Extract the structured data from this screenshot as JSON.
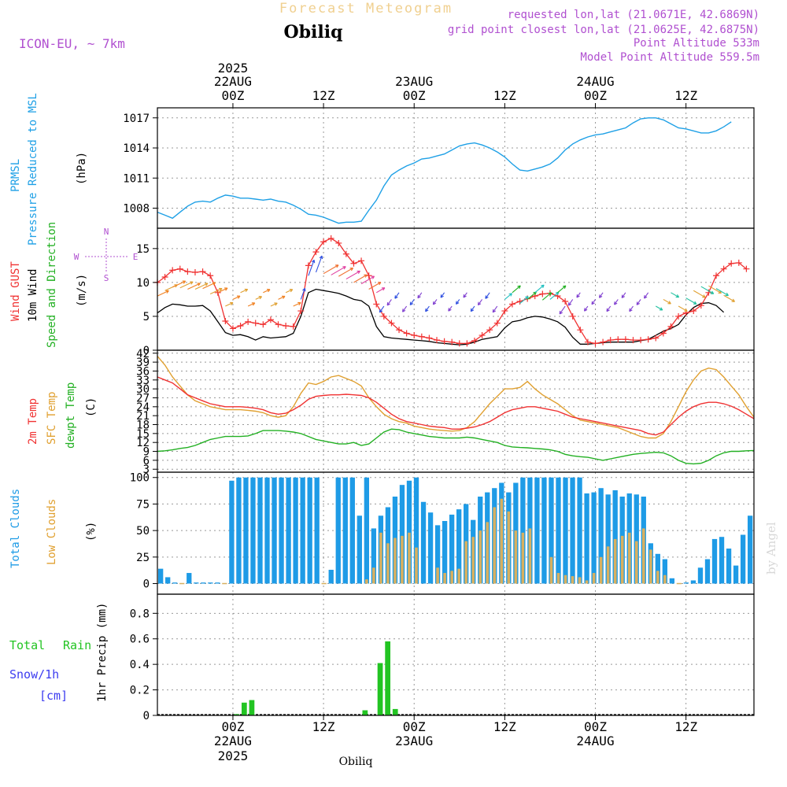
{
  "header": {
    "faint_title": "Forecast Meteogram",
    "location": "Obiliq",
    "model": "ICON-EU, ~ 7km",
    "info_lines": [
      "requested lon,lat (21.0671E, 42.6869N)",
      "grid point closest lon,lat (21.0625E, 42.6875N)",
      "Point Altitude 533m",
      "Model Point Altitude 559.5m"
    ],
    "watermark": "by Angel",
    "footer_location": "Obiliq"
  },
  "time_axis": {
    "year": "2025",
    "ticks": [
      {
        "hour": 0,
        "label": "00Z",
        "date": "22AUG"
      },
      {
        "hour": 12,
        "label": "12Z",
        "date": ""
      },
      {
        "hour": 24,
        "label": "00Z",
        "date": "23AUG"
      },
      {
        "hour": 36,
        "label": "12Z",
        "date": ""
      },
      {
        "hour": 48,
        "label": "00Z",
        "date": "24AUG"
      },
      {
        "hour": 60,
        "label": "12Z",
        "date": ""
      }
    ]
  },
  "colors": {
    "pressure": "#1ea0e6",
    "gust": "#f03232",
    "wind": "#000000",
    "direction": "#22b022",
    "temp2m": "#f03232",
    "sfc": "#e0a030",
    "dew": "#22b022",
    "total_cloud": "#1e9be6",
    "low_cloud": "#d8b060",
    "rain": "#22c422",
    "snow": "#3c3cf0",
    "info": "#b050d0",
    "faint": "#f0d090"
  },
  "panels": {
    "pressure": {
      "labels": [
        "PRMSL",
        "Pressure Reduced to MSL"
      ],
      "unit": "(hPa)",
      "yticks": [
        1008,
        1011,
        1014,
        1017
      ]
    },
    "wind": {
      "labels": [
        "Wind GUST",
        "10m Wind",
        "Speed and Direction"
      ],
      "unit": "(m/s)",
      "yticks": [
        0,
        5,
        10,
        15
      ],
      "compass": {
        "n": "N",
        "s": "S",
        "w": "W",
        "e": "E"
      }
    },
    "temp": {
      "labels": [
        "2m Temp",
        "SFC Temp",
        "dewpt Temp"
      ],
      "unit": "(C)",
      "yticks": [
        3,
        6,
        9,
        12,
        15,
        18,
        21,
        24,
        27,
        30,
        33,
        36,
        39,
        42
      ]
    },
    "cloud": {
      "labels": [
        "Total Clouds",
        "Low Clouds"
      ],
      "unit": "(%)",
      "yticks": [
        0,
        25,
        50,
        75,
        100
      ]
    },
    "precip": {
      "labels": [
        "Total",
        "Rain",
        "Snow/1h",
        "[cm]"
      ],
      "axis_label": "1hr Precip (mm)",
      "yticks": [
        "0",
        "0.2",
        "0.4",
        "0.6",
        "0.8"
      ]
    }
  },
  "chart_data": [
    {
      "type": "line",
      "name": "pressure",
      "x_start": -10,
      "x_step": 1,
      "ylim": [
        1006,
        1018
      ],
      "series": [
        {
          "name": "PRMSL",
          "values": [
            1007.6,
            1007.3,
            1007.0,
            1007.6,
            1008.2,
            1008.6,
            1008.7,
            1008.6,
            1009.0,
            1009.3,
            1009.2,
            1009.0,
            1009.0,
            1008.9,
            1008.8,
            1008.9,
            1008.7,
            1008.6,
            1008.3,
            1007.9,
            1007.4,
            1007.3,
            1007.1,
            1006.8,
            1006.5,
            1006.6,
            1006.6,
            1006.7,
            1007.8,
            1008.8,
            1010.2,
            1011.3,
            1011.8,
            1012.2,
            1012.5,
            1012.9,
            1013.0,
            1013.2,
            1013.4,
            1013.8,
            1014.2,
            1014.4,
            1014.5,
            1014.3,
            1014.0,
            1013.6,
            1013.1,
            1012.4,
            1011.8,
            1011.7,
            1011.9,
            1012.1,
            1012.4,
            1013.0,
            1013.8,
            1014.4,
            1014.8,
            1015.1,
            1015.3,
            1015.4,
            1015.6,
            1015.8,
            1016.0,
            1016.5,
            1016.9,
            1017.0,
            1017.0,
            1016.8,
            1016.4,
            1016.0,
            1015.9,
            1015.7,
            1015.5,
            1015.5,
            1015.7,
            1016.1,
            1016.6
          ]
        }
      ]
    },
    {
      "type": "line",
      "name": "wind",
      "x_start": -10,
      "x_step": 1,
      "ylim": [
        0,
        18
      ],
      "series": [
        {
          "name": "Wind GUST",
          "values": [
            10.0,
            10.8,
            11.8,
            12.0,
            11.6,
            11.5,
            11.6,
            11.0,
            8.5,
            4.3,
            3.2,
            3.6,
            4.2,
            4.0,
            3.8,
            4.5,
            3.8,
            3.6,
            3.5,
            5.8,
            12.5,
            14.5,
            16.0,
            16.5,
            15.8,
            14.2,
            12.8,
            13.2,
            11.0,
            6.8,
            5.0,
            4.0,
            3.0,
            2.5,
            2.2,
            2.0,
            1.8,
            1.5,
            1.3,
            1.2,
            1.0,
            1.0,
            1.4,
            2.2,
            3.0,
            4.0,
            5.8,
            6.8,
            7.2,
            7.6,
            8.0,
            8.3,
            8.4,
            8.0,
            7.2,
            5.0,
            3.0,
            1.2,
            1.0,
            1.2,
            1.5,
            1.6,
            1.6,
            1.5,
            1.5,
            1.6,
            1.8,
            2.5,
            3.5,
            5.0,
            5.5,
            5.8,
            6.6,
            8.5,
            11.0,
            12.0,
            12.8,
            12.9,
            12.0
          ]
        },
        {
          "name": "10m Wind",
          "values": [
            5.5,
            6.3,
            6.8,
            6.7,
            6.5,
            6.5,
            6.6,
            5.8,
            4.2,
            2.6,
            2.2,
            2.3,
            2.0,
            1.5,
            2.0,
            1.8,
            1.9,
            2.0,
            2.5,
            5.0,
            8.5,
            9.0,
            8.8,
            8.6,
            8.4,
            8.0,
            7.5,
            7.3,
            6.5,
            3.5,
            2.0,
            1.8,
            1.7,
            1.6,
            1.5,
            1.4,
            1.3,
            1.1,
            1.0,
            0.9,
            0.8,
            0.9,
            1.2,
            1.6,
            1.8,
            2.0,
            3.3,
            4.2,
            4.4,
            4.8,
            5.0,
            4.9,
            4.6,
            4.2,
            3.4,
            1.9,
            0.9,
            0.9,
            1.0,
            1.1,
            1.2,
            1.2,
            1.2,
            1.2,
            1.4,
            1.6,
            2.2,
            2.8,
            3.2,
            3.8,
            5.2,
            6.3,
            6.9,
            7.0,
            6.6,
            5.6
          ]
        }
      ]
    },
    {
      "type": "line",
      "name": "temperature",
      "x_start": -10,
      "x_step": 1,
      "ylim": [
        2,
        43
      ],
      "series": [
        {
          "name": "2m Temp",
          "values": [
            34,
            33,
            32,
            30,
            28,
            27,
            26,
            25,
            24.5,
            24,
            24,
            24,
            23.8,
            23.5,
            23,
            22,
            21.5,
            21.8,
            23,
            24.5,
            26.5,
            27.5,
            27.8,
            28,
            28,
            28.2,
            28,
            27.8,
            27,
            25.5,
            23.5,
            21.5,
            20,
            19,
            18.5,
            18,
            17.5,
            17.2,
            17,
            16.5,
            16.5,
            16.8,
            17.2,
            18,
            19,
            20.5,
            22,
            23,
            23.5,
            24,
            24,
            23.5,
            23,
            22.5,
            21.5,
            20.5,
            20,
            19.5,
            19,
            18.5,
            18,
            17.5,
            17,
            16.5,
            16,
            15,
            14.5,
            15.5,
            18,
            20.5,
            22.5,
            24,
            25,
            25.5,
            25.5,
            25,
            24.2,
            23,
            21.5,
            20
          ]
        },
        {
          "name": "SFC Temp",
          "values": [
            41,
            38,
            34,
            31,
            28,
            26,
            25,
            24,
            23.5,
            23,
            23,
            23,
            22.8,
            22.5,
            22,
            21,
            20.5,
            21,
            24,
            28.5,
            32,
            31.5,
            32.5,
            34,
            34.5,
            33.5,
            32.5,
            31,
            27,
            24,
            21.5,
            20,
            19,
            18.5,
            17.5,
            17,
            16.5,
            16.2,
            16,
            15.8,
            16,
            17,
            19,
            22,
            25,
            27.5,
            30,
            30,
            30.5,
            32.5,
            30,
            28,
            26.5,
            25,
            23,
            21,
            19.5,
            19,
            18.5,
            18,
            17.5,
            17,
            16,
            15,
            14,
            13.5,
            13.5,
            15,
            19,
            24,
            29,
            33,
            36,
            37,
            36.5,
            34,
            31,
            28,
            24,
            20.5
          ]
        },
        {
          "name": "dewpt Temp",
          "values": [
            9,
            9.2,
            9.5,
            10,
            10.3,
            11,
            12,
            13,
            13.5,
            14,
            14,
            14,
            14.2,
            15,
            16,
            16,
            16,
            15.8,
            15.5,
            15,
            14,
            13,
            12.5,
            12,
            11.5,
            11.5,
            12,
            11,
            11.5,
            13.5,
            15.5,
            16.5,
            16.3,
            15.5,
            15,
            14.5,
            14,
            13.8,
            13.5,
            13.5,
            13.5,
            13.8,
            13.5,
            13,
            12.5,
            12,
            11,
            10.5,
            10.3,
            10.2,
            10,
            9.8,
            9.5,
            9,
            8,
            7.5,
            7.2,
            7,
            6.5,
            6,
            6.5,
            7,
            7.5,
            8,
            8.3,
            8.5,
            8.7,
            8.5,
            7.5,
            6,
            5,
            4.8,
            5,
            6,
            7.5,
            8.5,
            9,
            9,
            9.2,
            9.3
          ]
        }
      ]
    },
    {
      "type": "bar",
      "name": "clouds",
      "x_start": -10,
      "x_step": 1,
      "ylim": [
        -10,
        105
      ],
      "series": [
        {
          "name": "Total Clouds",
          "values": [
            14,
            6,
            1,
            0,
            10,
            1,
            1,
            1,
            1,
            0,
            97,
            100,
            100,
            100,
            100,
            100,
            100,
            100,
            100,
            100,
            100,
            100,
            100,
            0,
            13,
            100,
            100,
            100,
            64,
            100,
            52,
            64,
            72,
            82,
            93,
            97,
            100,
            77,
            67,
            55,
            59,
            65,
            70,
            75,
            60,
            82,
            86,
            90,
            95,
            86,
            95,
            100,
            100,
            100,
            100,
            100,
            100,
            100,
            100,
            100,
            85,
            86,
            90,
            84,
            88,
            82,
            85,
            84,
            82,
            38,
            28,
            23,
            5,
            0,
            1,
            3,
            15,
            23,
            42,
            44,
            33,
            17,
            46,
            64
          ]
        },
        {
          "name": "Low Clouds",
          "values": [
            0,
            0,
            0,
            0,
            0,
            0,
            0,
            0,
            0,
            0,
            0,
            0,
            0,
            0,
            0,
            0,
            0,
            0,
            0,
            0,
            0,
            0,
            0,
            0,
            0,
            0,
            0,
            0,
            0,
            4,
            15,
            48,
            38,
            43,
            45,
            48,
            34,
            0,
            0,
            15,
            10,
            12,
            14,
            40,
            44,
            50,
            58,
            72,
            80,
            68,
            50,
            48,
            52,
            0,
            0,
            25,
            10,
            8,
            7,
            6,
            3,
            10,
            25,
            35,
            42,
            45,
            48,
            40,
            52,
            32,
            12,
            8,
            0,
            0,
            0,
            0,
            0,
            0,
            0,
            0,
            0,
            0,
            0,
            0
          ]
        }
      ]
    },
    {
      "type": "bar",
      "name": "precip",
      "ylim": [
        0,
        0.95
      ],
      "series": [
        {
          "name": "Total Rain",
          "bars": [
            {
              "x": 0.5,
              "value": 0.01
            },
            {
              "x": 1.5,
              "value": 0.1
            },
            {
              "x": 2.5,
              "value": 0.12
            },
            {
              "x": 17.5,
              "value": 0.04
            },
            {
              "x": 19.5,
              "value": 0.41
            },
            {
              "x": 20.5,
              "value": 0.58
            },
            {
              "x": 21.5,
              "value": 0.05
            }
          ]
        }
      ]
    }
  ]
}
